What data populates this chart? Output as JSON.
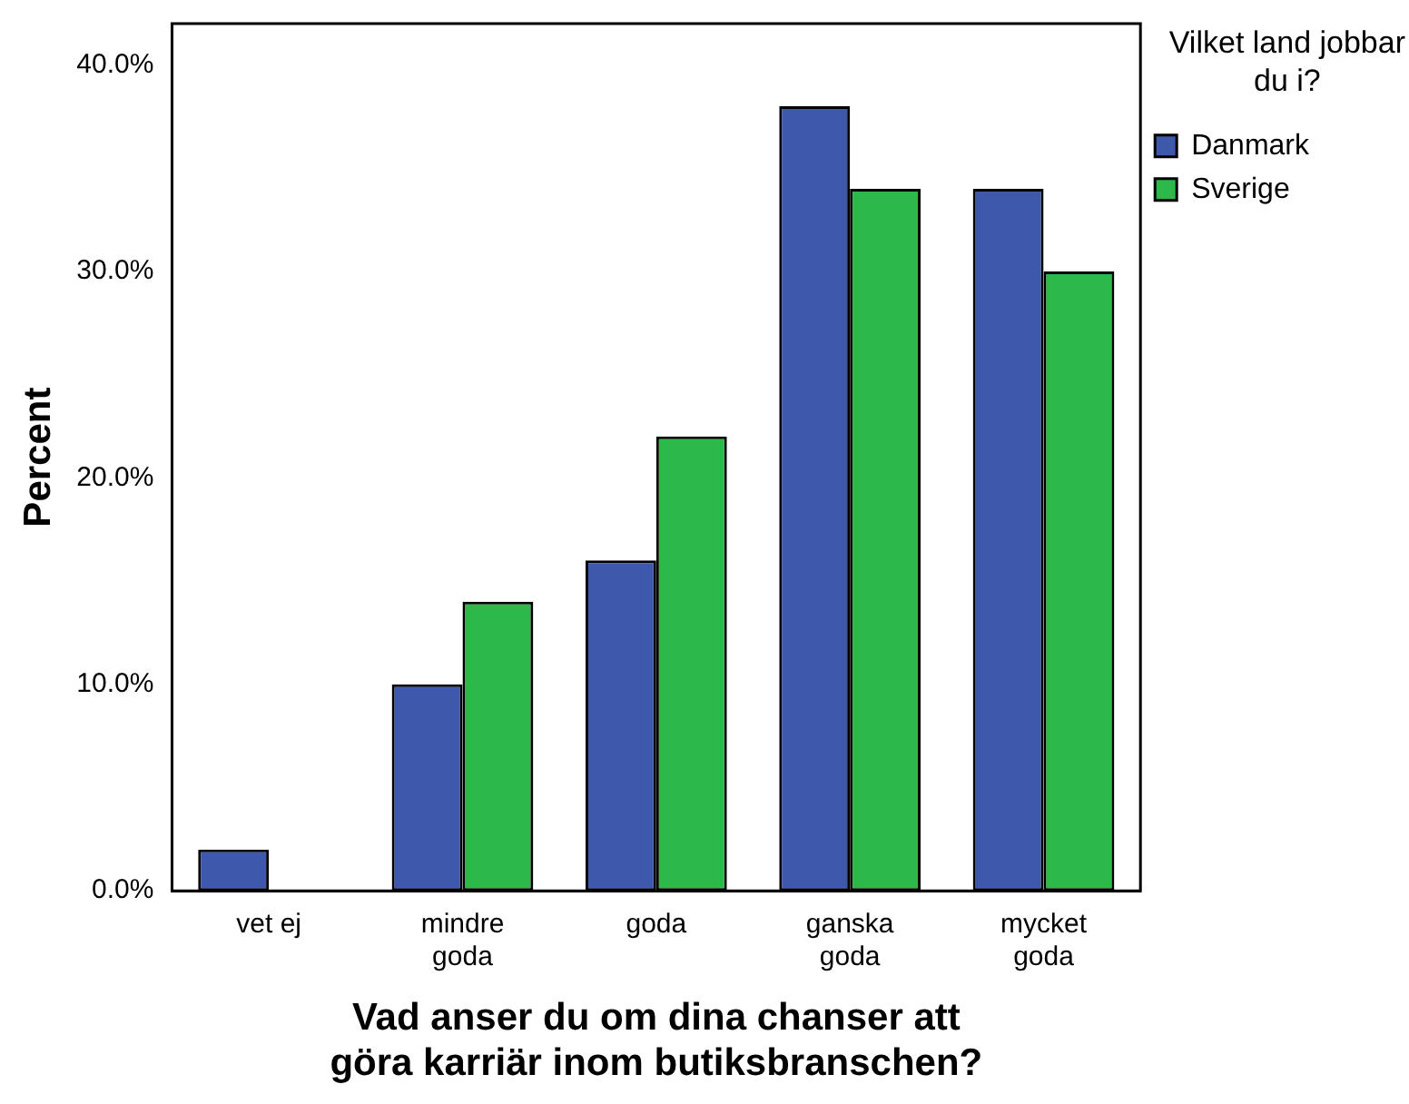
{
  "chart_data": {
    "type": "bar",
    "xlabel": "Vad anser du om dina chanser att\ngöra karriär inom butiksbranschen?",
    "ylabel": "Percent",
    "legend_title": "Vilket land jobbar\ndu i?",
    "legend": "top right",
    "grid": false,
    "categories": [
      "vet ej",
      "mindre\ngoda",
      "goda",
      "ganska\ngoda",
      "mycket\ngoda"
    ],
    "series": [
      {
        "name": "Danmark",
        "color": "#3e58ac",
        "values": [
          2,
          10,
          16,
          38,
          34
        ]
      },
      {
        "name": "Sverige",
        "color": "#2db84a",
        "values": [
          0,
          14,
          22,
          34,
          30
        ]
      }
    ],
    "ylim": [
      0,
      42
    ],
    "yticks": [
      {
        "value": 0,
        "label": "0.0%"
      },
      {
        "value": 10,
        "label": "10.0%"
      },
      {
        "value": 20,
        "label": "20.0%"
      },
      {
        "value": 30,
        "label": "30.0%"
      },
      {
        "value": 40,
        "label": "40.0%"
      }
    ]
  }
}
